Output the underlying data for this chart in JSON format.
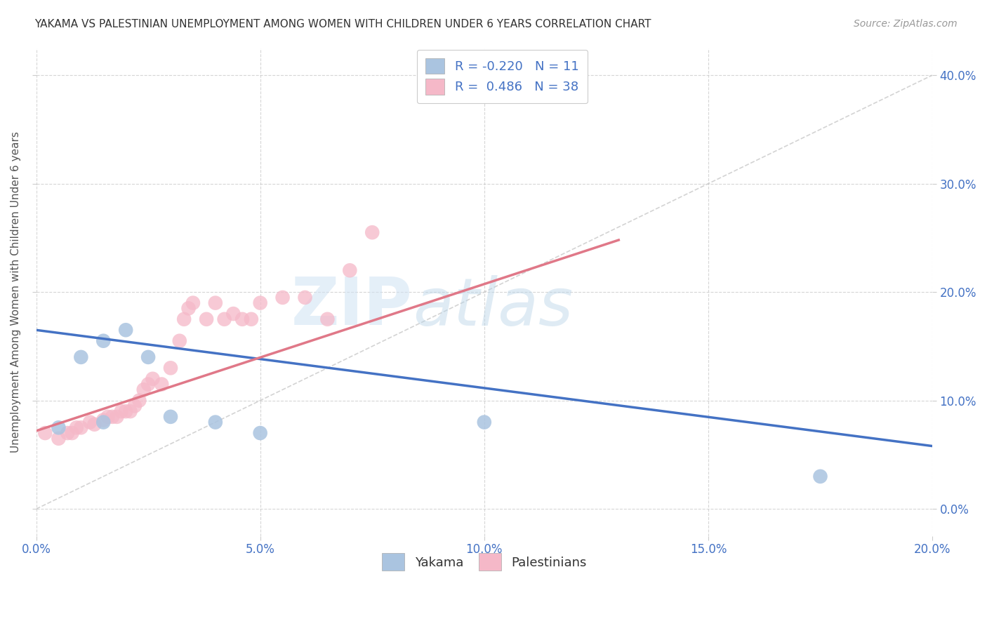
{
  "title": "YAKAMA VS PALESTINIAN UNEMPLOYMENT AMONG WOMEN WITH CHILDREN UNDER 6 YEARS CORRELATION CHART",
  "source": "Source: ZipAtlas.com",
  "ylabel": "Unemployment Among Women with Children Under 6 years",
  "xlim": [
    0.0,
    0.2
  ],
  "ylim": [
    -0.025,
    0.425
  ],
  "xticks": [
    0.0,
    0.05,
    0.1,
    0.15,
    0.2
  ],
  "yticks": [
    0.0,
    0.1,
    0.2,
    0.3,
    0.4
  ],
  "yakama_R": -0.22,
  "yakama_N": 11,
  "palestinian_R": 0.486,
  "palestinian_N": 38,
  "yakama_color": "#aac4e0",
  "palestinian_color": "#f5b8c8",
  "yakama_line_color": "#4472c4",
  "palestinian_line_color": "#e07888",
  "diagonal_color": "#cccccc",
  "background_color": "#ffffff",
  "grid_color": "#cccccc",
  "watermark_zip": "ZIP",
  "watermark_atlas": "atlas",
  "yakama_points_x": [
    0.005,
    0.01,
    0.015,
    0.015,
    0.02,
    0.025,
    0.03,
    0.04,
    0.05,
    0.1,
    0.175
  ],
  "yakama_points_y": [
    0.075,
    0.14,
    0.155,
    0.08,
    0.165,
    0.14,
    0.085,
    0.08,
    0.07,
    0.08,
    0.03
  ],
  "palestinian_points_x": [
    0.002,
    0.005,
    0.007,
    0.008,
    0.009,
    0.01,
    0.012,
    0.013,
    0.015,
    0.016,
    0.017,
    0.018,
    0.019,
    0.02,
    0.021,
    0.022,
    0.023,
    0.024,
    0.025,
    0.026,
    0.028,
    0.03,
    0.032,
    0.033,
    0.034,
    0.035,
    0.038,
    0.04,
    0.042,
    0.044,
    0.046,
    0.048,
    0.05,
    0.055,
    0.06,
    0.065,
    0.07,
    0.075
  ],
  "palestinian_points_y": [
    0.07,
    0.065,
    0.07,
    0.07,
    0.075,
    0.075,
    0.08,
    0.078,
    0.082,
    0.085,
    0.085,
    0.085,
    0.09,
    0.09,
    0.09,
    0.095,
    0.1,
    0.11,
    0.115,
    0.12,
    0.115,
    0.13,
    0.155,
    0.175,
    0.185,
    0.19,
    0.175,
    0.19,
    0.175,
    0.18,
    0.175,
    0.175,
    0.19,
    0.195,
    0.195,
    0.175,
    0.22,
    0.255
  ],
  "yakama_line_x": [
    0.0,
    0.2
  ],
  "yakama_line_y": [
    0.165,
    0.058
  ],
  "palestinian_line_x": [
    0.0,
    0.13
  ],
  "palestinian_line_y": [
    0.072,
    0.248
  ]
}
